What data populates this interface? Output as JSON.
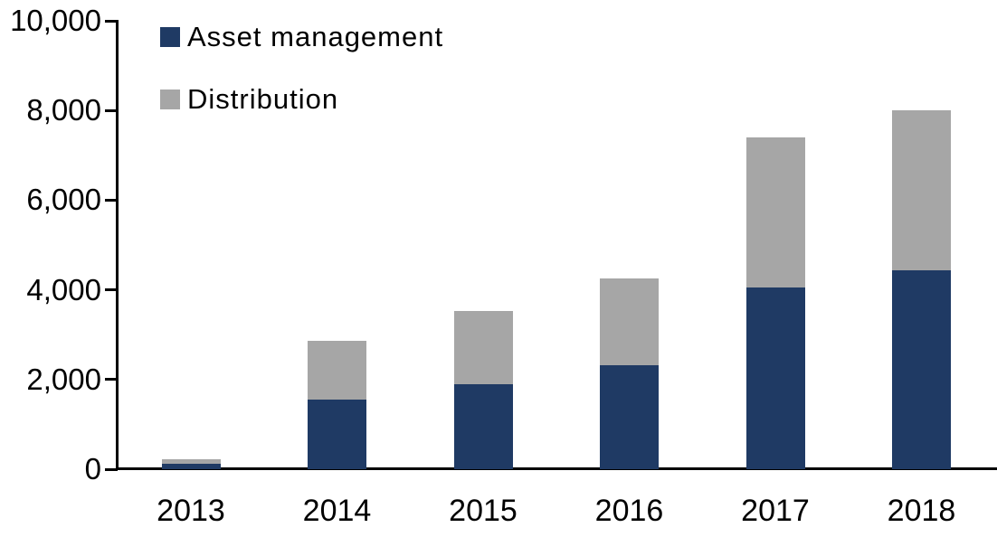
{
  "chart_data": {
    "type": "bar",
    "stacked": true,
    "title": "",
    "xlabel": "",
    "ylabel": "",
    "categories": [
      "2013",
      "2014",
      "2015",
      "2016",
      "2017",
      "2018"
    ],
    "series": [
      {
        "name": "Asset management",
        "color": "#1F3A64",
        "values": [
          120,
          1550,
          1890,
          2320,
          4060,
          4430
        ]
      },
      {
        "name": "Distribution",
        "color": "#A6A6A6",
        "values": [
          100,
          1310,
          1630,
          1940,
          3340,
          3570
        ]
      }
    ],
    "totals": [
      220,
      2860,
      3520,
      4260,
      7400,
      8000
    ],
    "ylim": [
      0,
      10000
    ],
    "ytick_interval": 2000,
    "ytick_labels": [
      "0",
      "2,000",
      "4,000",
      "6,000",
      "8,000",
      "10,000"
    ],
    "grid": false,
    "legend_position": "top-left-inside",
    "axis_color": "#000000",
    "background_color": "#FFFFFF"
  }
}
